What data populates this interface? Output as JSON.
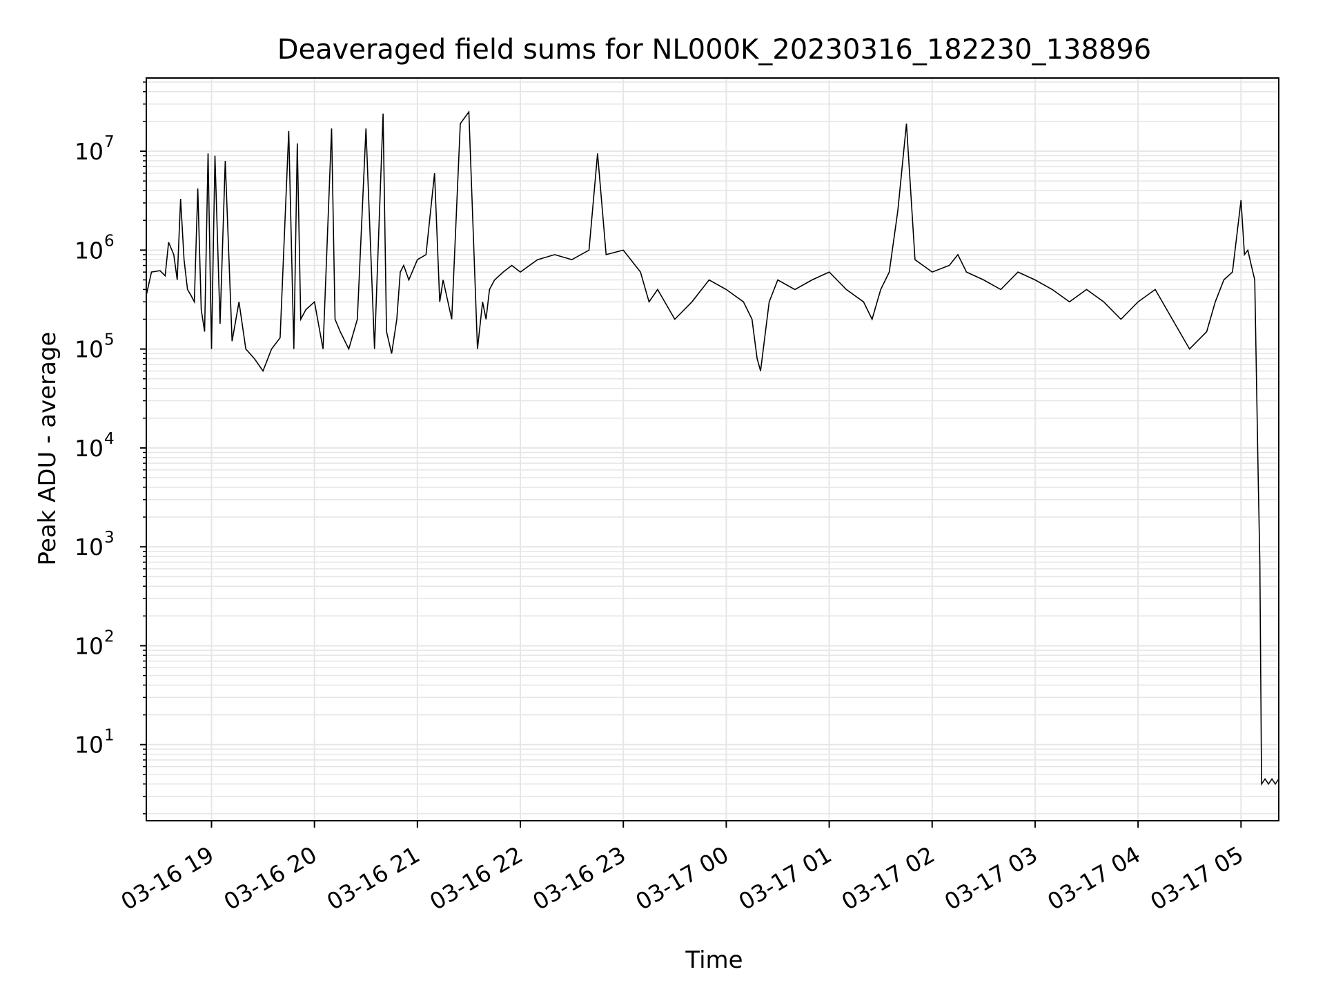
{
  "chart_data": {
    "type": "line",
    "title": "Deaveraged field sums for NL000K_20230316_182230_138896",
    "xlabel": "Time",
    "ylabel": "Peak ADU - average",
    "yscale": "log",
    "ylim": [
      1.7,
      55000000
    ],
    "xlim": [
      "2023-03-16 18:22",
      "2023-03-17 05:22"
    ],
    "grid": true,
    "line_color": "#000000",
    "grid_color": "#e6e6e6",
    "x_tick_labels": [
      "03-16 19",
      "03-16 20",
      "03-16 21",
      "03-16 22",
      "03-16 23",
      "03-17 00",
      "03-17 01",
      "03-17 02",
      "03-17 03",
      "03-17 04",
      "03-17 05"
    ],
    "x_ticks": [
      "2023-03-16 19:00",
      "2023-03-16 20:00",
      "2023-03-16 21:00",
      "2023-03-16 22:00",
      "2023-03-16 23:00",
      "2023-03-17 00:00",
      "2023-03-17 01:00",
      "2023-03-17 02:00",
      "2023-03-17 03:00",
      "2023-03-17 04:00",
      "2023-03-17 05:00"
    ],
    "y_tick_labels": [
      {
        "base": "10",
        "exp": "1",
        "value": 10
      },
      {
        "base": "10",
        "exp": "2",
        "value": 100
      },
      {
        "base": "10",
        "exp": "3",
        "value": 1000
      },
      {
        "base": "10",
        "exp": "4",
        "value": 10000
      },
      {
        "base": "10",
        "exp": "5",
        "value": 100000
      },
      {
        "base": "10",
        "exp": "6",
        "value": 1000000
      },
      {
        "base": "10",
        "exp": "7",
        "value": 10000000
      }
    ],
    "series": [
      {
        "x": [
          "2023-03-16 18:22",
          "2023-03-16 18:25",
          "2023-03-16 18:30",
          "2023-03-16 18:33",
          "2023-03-16 18:35",
          "2023-03-16 18:38",
          "2023-03-16 18:40",
          "2023-03-16 18:42",
          "2023-03-16 18:44",
          "2023-03-16 18:46",
          "2023-03-16 18:48",
          "2023-03-16 18:50",
          "2023-03-16 18:52",
          "2023-03-16 18:54",
          "2023-03-16 18:56",
          "2023-03-16 18:58",
          "2023-03-16 19:00",
          "2023-03-16 19:02",
          "2023-03-16 19:05",
          "2023-03-16 19:08",
          "2023-03-16 19:12",
          "2023-03-16 19:16",
          "2023-03-16 19:20",
          "2023-03-16 19:25",
          "2023-03-16 19:30",
          "2023-03-16 19:35",
          "2023-03-16 19:40",
          "2023-03-16 19:45",
          "2023-03-16 19:48",
          "2023-03-16 19:50",
          "2023-03-16 19:52",
          "2023-03-16 19:55",
          "2023-03-16 20:00",
          "2023-03-16 20:05",
          "2023-03-16 20:10",
          "2023-03-16 20:12",
          "2023-03-16 20:15",
          "2023-03-16 20:20",
          "2023-03-16 20:25",
          "2023-03-16 20:30",
          "2023-03-16 20:35",
          "2023-03-16 20:40",
          "2023-03-16 20:42",
          "2023-03-16 20:45",
          "2023-03-16 20:48",
          "2023-03-16 20:50",
          "2023-03-16 20:52",
          "2023-03-16 20:55",
          "2023-03-16 21:00",
          "2023-03-16 21:05",
          "2023-03-16 21:10",
          "2023-03-16 21:13",
          "2023-03-16 21:15",
          "2023-03-16 21:20",
          "2023-03-16 21:25",
          "2023-03-16 21:30",
          "2023-03-16 21:35",
          "2023-03-16 21:38",
          "2023-03-16 21:40",
          "2023-03-16 21:42",
          "2023-03-16 21:45",
          "2023-03-16 21:50",
          "2023-03-16 21:55",
          "2023-03-16 22:00",
          "2023-03-16 22:10",
          "2023-03-16 22:20",
          "2023-03-16 22:30",
          "2023-03-16 22:40",
          "2023-03-16 22:45",
          "2023-03-16 22:50",
          "2023-03-16 23:00",
          "2023-03-16 23:10",
          "2023-03-16 23:15",
          "2023-03-16 23:20",
          "2023-03-16 23:30",
          "2023-03-16 23:40",
          "2023-03-16 23:50",
          "2023-03-17 00:00",
          "2023-03-17 00:10",
          "2023-03-17 00:15",
          "2023-03-17 00:18",
          "2023-03-17 00:20",
          "2023-03-17 00:25",
          "2023-03-17 00:30",
          "2023-03-17 00:40",
          "2023-03-17 00:50",
          "2023-03-17 01:00",
          "2023-03-17 01:10",
          "2023-03-17 01:20",
          "2023-03-17 01:25",
          "2023-03-17 01:30",
          "2023-03-17 01:35",
          "2023-03-17 01:40",
          "2023-03-17 01:45",
          "2023-03-17 01:50",
          "2023-03-17 02:00",
          "2023-03-17 02:10",
          "2023-03-17 02:15",
          "2023-03-17 02:20",
          "2023-03-17 02:30",
          "2023-03-17 02:40",
          "2023-03-17 02:50",
          "2023-03-17 03:00",
          "2023-03-17 03:10",
          "2023-03-17 03:20",
          "2023-03-17 03:30",
          "2023-03-17 03:40",
          "2023-03-17 03:50",
          "2023-03-17 04:00",
          "2023-03-17 04:10",
          "2023-03-17 04:20",
          "2023-03-17 04:30",
          "2023-03-17 04:40",
          "2023-03-17 04:45",
          "2023-03-17 04:50",
          "2023-03-17 04:55",
          "2023-03-17 05:00",
          "2023-03-17 05:02",
          "2023-03-17 05:04",
          "2023-03-17 05:06",
          "2023-03-17 05:08",
          "2023-03-17 05:09",
          "2023-03-17 05:10",
          "2023-03-17 05:11",
          "2023-03-17 05:12",
          "2023-03-17 05:14",
          "2023-03-17 05:16",
          "2023-03-17 05:18",
          "2023-03-17 05:20",
          "2023-03-17 05:22"
        ],
        "y": [
          350000,
          600000,
          620000,
          550000,
          1200000,
          900000,
          500000,
          3300000,
          800000,
          400000,
          350000,
          300000,
          4200000,
          250000,
          150000,
          9500000,
          100000,
          9000000,
          180000,
          8000000,
          120000,
          300000,
          100000,
          80000,
          60000,
          100000,
          130000,
          16000000,
          100000,
          12000000,
          200000,
          250000,
          300000,
          100000,
          17000000,
          200000,
          150000,
          100000,
          200000,
          17000000,
          100000,
          24000000,
          150000,
          90000,
          200000,
          600000,
          700000,
          500000,
          800000,
          900000,
          6000000,
          300000,
          500000,
          200000,
          19000000,
          25000000,
          100000,
          300000,
          200000,
          400000,
          500000,
          600000,
          700000,
          600000,
          800000,
          900000,
          800000,
          1000000,
          9500000,
          900000,
          1000000,
          600000,
          300000,
          400000,
          200000,
          300000,
          500000,
          400000,
          300000,
          200000,
          80000,
          60000,
          300000,
          500000,
          400000,
          500000,
          600000,
          400000,
          300000,
          200000,
          400000,
          600000,
          2500000,
          19000000,
          800000,
          600000,
          700000,
          900000,
          600000,
          500000,
          400000,
          600000,
          500000,
          400000,
          300000,
          400000,
          300000,
          200000,
          300000,
          400000,
          200000,
          100000,
          150000,
          300000,
          500000,
          600000,
          3200000,
          900000,
          1000000,
          700000,
          500000,
          50000,
          5000,
          700,
          4,
          4.5,
          4,
          4.5,
          4,
          4.5
        ]
      }
    ]
  }
}
